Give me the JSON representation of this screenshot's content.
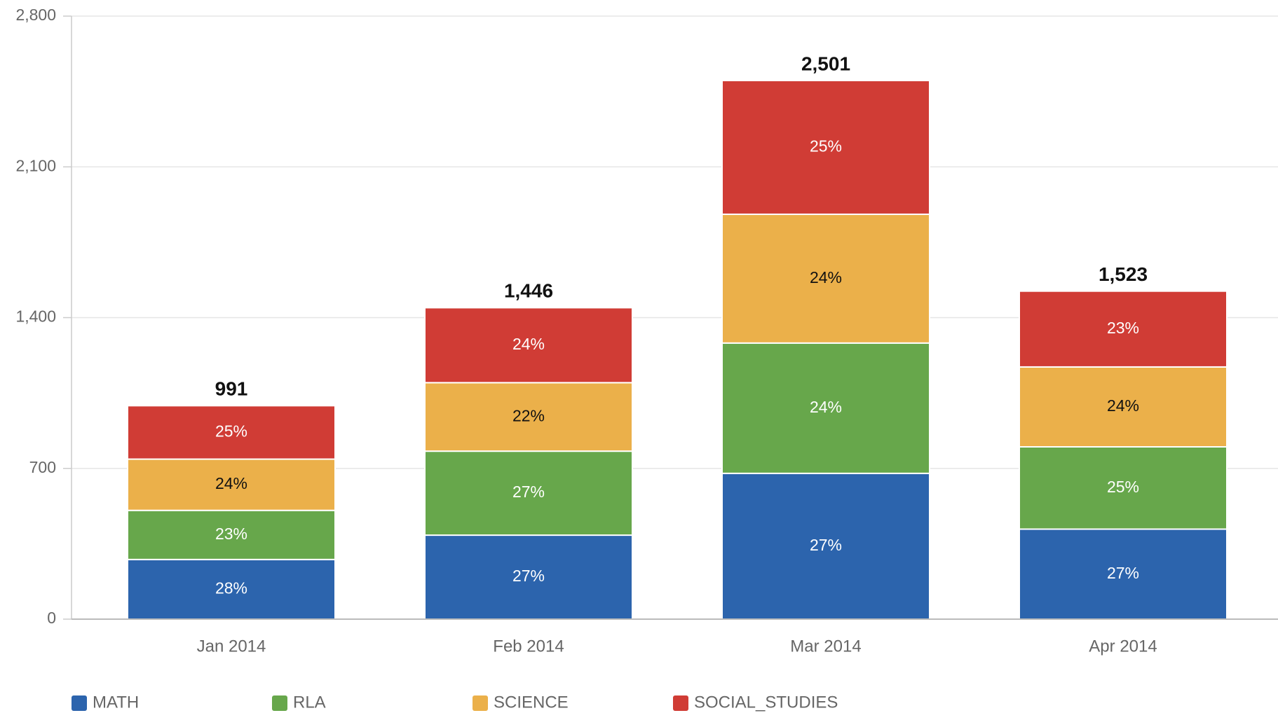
{
  "chart_data": {
    "type": "stacked_bar",
    "categories": [
      "Jan 2014",
      "Feb 2014",
      "Mar 2014",
      "Apr 2014"
    ],
    "series": [
      {
        "name": "MATH",
        "color": "#2c64ad",
        "values": [
          277,
          390,
          677,
          418
        ],
        "percent_labels": [
          "28%",
          "27%",
          "27%",
          "27%"
        ],
        "label_color": "#ffffff"
      },
      {
        "name": "RLA",
        "color": "#67a74b",
        "values": [
          228,
          390,
          605,
          382
        ],
        "percent_labels": [
          "23%",
          "27%",
          "24%",
          "25%"
        ],
        "label_color": "#ffffff"
      },
      {
        "name": "SCIENCE",
        "color": "#ebb04a",
        "values": [
          238,
          318,
          598,
          371
        ],
        "percent_labels": [
          "24%",
          "22%",
          "24%",
          "24%"
        ],
        "label_color": "#111111"
      },
      {
        "name": "SOCIAL_STUDIES",
        "color": "#d03c35",
        "values": [
          248,
          348,
          621,
          352
        ],
        "percent_labels": [
          "25%",
          "24%",
          "25%",
          "23%"
        ],
        "label_color": "#ffffff"
      }
    ],
    "totals": [
      991,
      1446,
      2501,
      1523
    ],
    "total_labels": [
      "991",
      "1,446",
      "2,501",
      "1,523"
    ],
    "ylim": [
      0,
      2800
    ],
    "yticks": [
      0,
      700,
      {
        "value": 1400,
        "label": "1,400"
      },
      {
        "value": 2100,
        "label": "2,100"
      },
      {
        "value": 2800,
        "label": "2,800"
      }
    ],
    "grid": true,
    "legend": "bottom"
  }
}
